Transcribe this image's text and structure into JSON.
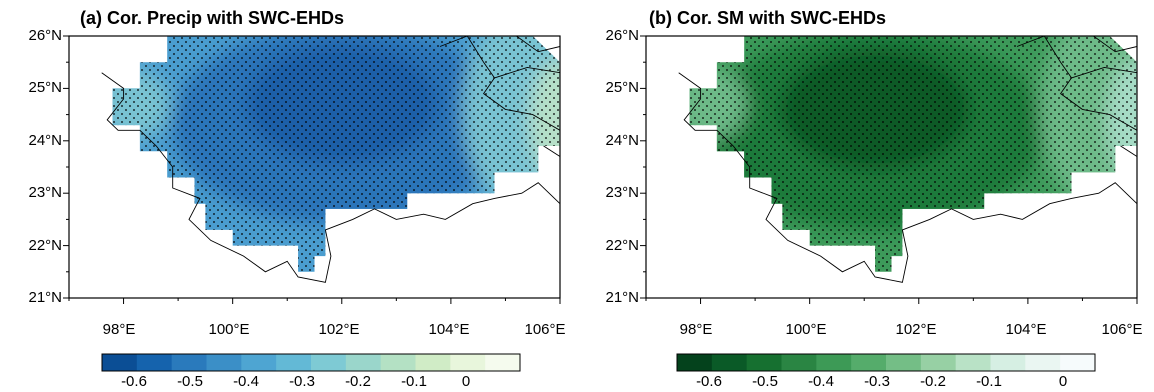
{
  "panels": [
    {
      "title": "(a) Cor. Precip with SWC-EHDs",
      "y_ticks": [
        "26°N",
        "25°N",
        "24°N",
        "23°N",
        "22°N",
        "21°N"
      ],
      "x_ticks": [
        "98°E",
        "100°E",
        "102°E",
        "104°E",
        "106°E"
      ],
      "colorbar_labels": [
        "-0.6",
        "-0.5",
        "-0.4",
        "-0.3",
        "-0.2",
        "-0.1",
        "0"
      ],
      "colorbar_colors": [
        "#0b4e95",
        "#1563ad",
        "#2a7abc",
        "#3b8fc7",
        "#4ea5d2",
        "#63b9d6",
        "#7ecad4",
        "#9ad6cb",
        "#b4e1c4",
        "#d0ecc6",
        "#e8f6dc",
        "#f5fbee"
      ],
      "field_colors": {
        "deep": "#1a5ea8",
        "mid": "#2b74b9",
        "light": "#4a9dcf",
        "pale": "#79c3d2",
        "edge": "#b6e0c8"
      }
    },
    {
      "title": "(b) Cor. SM with SWC-EHDs",
      "y_ticks": [
        "26°N",
        "25°N",
        "24°N",
        "23°N",
        "22°N",
        "21°N"
      ],
      "x_ticks": [
        "98°E",
        "100°E",
        "102°E",
        "104°E",
        "106°E"
      ],
      "colorbar_labels": [
        "-0.6",
        "-0.5",
        "-0.4",
        "-0.3",
        "-0.2",
        "-0.1",
        "0"
      ],
      "colorbar_colors": [
        "#04421c",
        "#0a5a27",
        "#167030",
        "#2a8543",
        "#3d9a56",
        "#55ac6b",
        "#74be86",
        "#97d0a4",
        "#b9e2c6",
        "#d6efe3",
        "#eaf6f2",
        "#f6fbfc"
      ],
      "field_colors": {
        "deep": "#0b5a28",
        "mid": "#1d7a3a",
        "light": "#3d9a5a",
        "pale": "#6dba88",
        "edge": "#a6dcc6"
      }
    }
  ],
  "chart_data": [
    {
      "type": "heatmap",
      "title": "(a) Cor. Precip with SWC-EHDs",
      "xlim": [
        97,
        106
      ],
      "ylim": [
        21,
        26
      ],
      "x_ticks": [
        98,
        100,
        102,
        104,
        106
      ],
      "y_ticks": [
        21,
        22,
        23,
        24,
        25,
        26
      ],
      "colorbar": {
        "min": -0.65,
        "max": 0.0,
        "step": 0.05,
        "labeled": [
          -0.6,
          -0.5,
          -0.4,
          -0.3,
          -0.2,
          -0.1,
          0
        ]
      },
      "region": [
        [
          98.8,
          26
        ],
        [
          105.5,
          26
        ],
        [
          106,
          25.5
        ],
        [
          106,
          23.9
        ],
        [
          105.6,
          23.9
        ],
        [
          105.6,
          23.4
        ],
        [
          104.8,
          23.4
        ],
        [
          104.8,
          23.0
        ],
        [
          103.2,
          23.0
        ],
        [
          103.2,
          22.7
        ],
        [
          101.7,
          22.7
        ],
        [
          101.7,
          21.8
        ],
        [
          101.5,
          21.8
        ],
        [
          101.5,
          21.5
        ],
        [
          101.2,
          21.5
        ],
        [
          101.2,
          22.0
        ],
        [
          100.0,
          22.0
        ],
        [
          100.0,
          22.3
        ],
        [
          99.5,
          22.3
        ],
        [
          99.5,
          22.8
        ],
        [
          99.3,
          22.8
        ],
        [
          99.3,
          23.3
        ],
        [
          98.8,
          23.3
        ],
        [
          98.8,
          23.8
        ],
        [
          98.3,
          23.8
        ],
        [
          98.3,
          24.3
        ],
        [
          97.8,
          24.3
        ],
        [
          97.8,
          25.0
        ],
        [
          98.3,
          25.0
        ],
        [
          98.3,
          25.5
        ],
        [
          98.8,
          25.5
        ]
      ],
      "field": {
        "minimum": -0.6,
        "min_location": [
          102.0,
          24.9
        ],
        "east_edge_value": -0.15
      },
      "stippling": "significant over nearly the entire domain"
    },
    {
      "type": "heatmap",
      "title": "(b) Cor. SM with SWC-EHDs",
      "xlim": [
        97,
        106
      ],
      "ylim": [
        21,
        26
      ],
      "x_ticks": [
        98,
        100,
        102,
        104,
        106
      ],
      "y_ticks": [
        21,
        22,
        23,
        24,
        25,
        26
      ],
      "colorbar": {
        "min": -0.65,
        "max": 0.0,
        "step": 0.05,
        "labeled": [
          -0.6,
          -0.5,
          -0.4,
          -0.3,
          -0.2,
          -0.1,
          0
        ]
      },
      "region": [
        [
          98.8,
          26
        ],
        [
          105.5,
          26
        ],
        [
          106,
          25.5
        ],
        [
          106,
          23.9
        ],
        [
          105.6,
          23.9
        ],
        [
          105.6,
          23.4
        ],
        [
          104.8,
          23.4
        ],
        [
          104.8,
          23.0
        ],
        [
          103.2,
          23.0
        ],
        [
          103.2,
          22.7
        ],
        [
          101.7,
          22.7
        ],
        [
          101.7,
          21.8
        ],
        [
          101.5,
          21.8
        ],
        [
          101.5,
          21.5
        ],
        [
          101.2,
          21.5
        ],
        [
          101.2,
          22.0
        ],
        [
          100.0,
          22.0
        ],
        [
          100.0,
          22.3
        ],
        [
          99.5,
          22.3
        ],
        [
          99.5,
          22.8
        ],
        [
          99.3,
          22.8
        ],
        [
          99.3,
          23.3
        ],
        [
          98.8,
          23.3
        ],
        [
          98.8,
          23.8
        ],
        [
          98.3,
          23.8
        ],
        [
          98.3,
          24.3
        ],
        [
          97.8,
          24.3
        ],
        [
          97.8,
          25.0
        ],
        [
          98.3,
          25.0
        ],
        [
          98.3,
          25.5
        ],
        [
          98.8,
          25.5
        ]
      ],
      "field": {
        "minimum": -0.65,
        "min_location": [
          101.2,
          24.8
        ],
        "east_edge_value": -0.15
      },
      "stippling": "significant over nearly the entire domain"
    }
  ]
}
